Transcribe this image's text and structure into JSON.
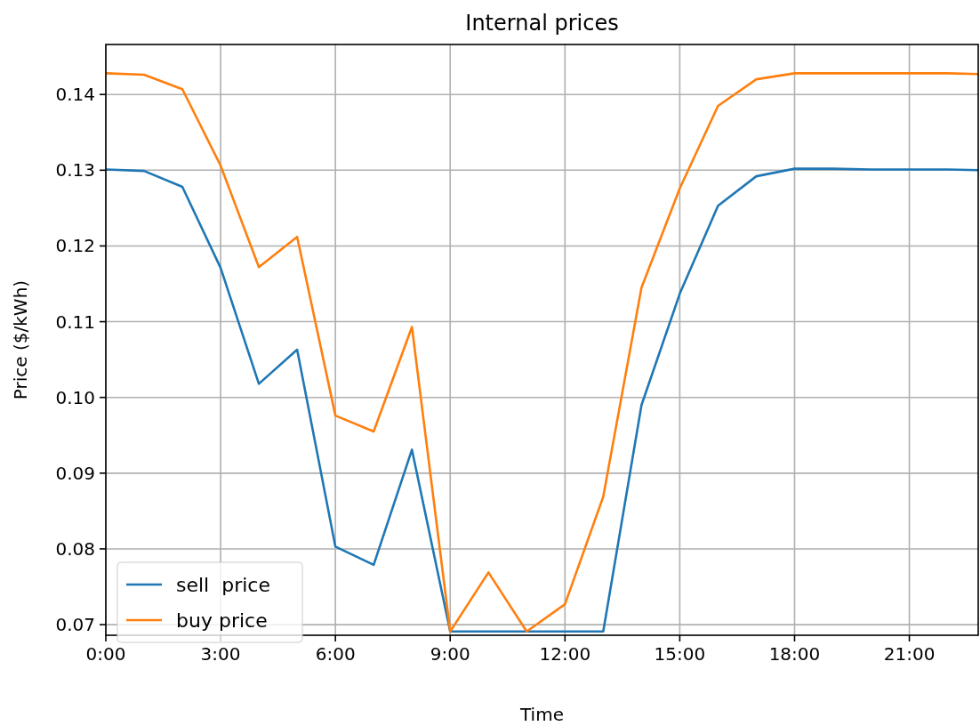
{
  "chart_data": {
    "type": "line",
    "title": "Internal prices",
    "xlabel": "Time",
    "ylabel": "Price ($/kWh)",
    "x": [
      0,
      1,
      2,
      3,
      4,
      5,
      6,
      7,
      8,
      9,
      10,
      11,
      12,
      13,
      14,
      15,
      16,
      17,
      18,
      19,
      20,
      21,
      22,
      22.8
    ],
    "series": [
      {
        "name": "sell  price",
        "color": "#1f77b4",
        "values": [
          0.1301,
          0.1299,
          0.1278,
          0.1171,
          0.1018,
          0.1063,
          0.0803,
          0.0779,
          0.0931,
          0.0691,
          0.0691,
          0.0691,
          0.0691,
          0.0691,
          0.099,
          0.1137,
          0.1253,
          0.1292,
          0.1302,
          0.1302,
          0.1301,
          0.1301,
          0.1301,
          0.13
        ]
      },
      {
        "name": "buy price",
        "color": "#ff7f0e",
        "values": [
          0.1428,
          0.1426,
          0.1407,
          0.1306,
          0.1172,
          0.1212,
          0.0976,
          0.0955,
          0.1093,
          0.0691,
          0.0769,
          0.0691,
          0.0727,
          0.0869,
          0.1145,
          0.1276,
          0.1385,
          0.142,
          0.1428,
          0.1428,
          0.1428,
          0.1428,
          0.1428,
          0.1427
        ]
      }
    ],
    "xlim": [
      0,
      22.8
    ],
    "xticks": [
      {
        "value": 0,
        "label": "0:00"
      },
      {
        "value": 3,
        "label": "3:00"
      },
      {
        "value": 6,
        "label": "6:00"
      },
      {
        "value": 9,
        "label": "9:00"
      },
      {
        "value": 12,
        "label": "12:00"
      },
      {
        "value": 15,
        "label": "15:00"
      },
      {
        "value": 18,
        "label": "18:00"
      },
      {
        "value": 21,
        "label": "21:00"
      }
    ],
    "ylim": [
      0.0686,
      0.1466
    ],
    "yticks": [
      {
        "value": 0.07,
        "label": "0.07"
      },
      {
        "value": 0.08,
        "label": "0.08"
      },
      {
        "value": 0.09,
        "label": "0.09"
      },
      {
        "value": 0.1,
        "label": "0.10"
      },
      {
        "value": 0.11,
        "label": "0.11"
      },
      {
        "value": 0.12,
        "label": "0.12"
      },
      {
        "value": 0.13,
        "label": "0.13"
      },
      {
        "value": 0.14,
        "label": "0.14"
      }
    ],
    "grid": true,
    "legend": "bottom left",
    "line_style": "solid"
  }
}
